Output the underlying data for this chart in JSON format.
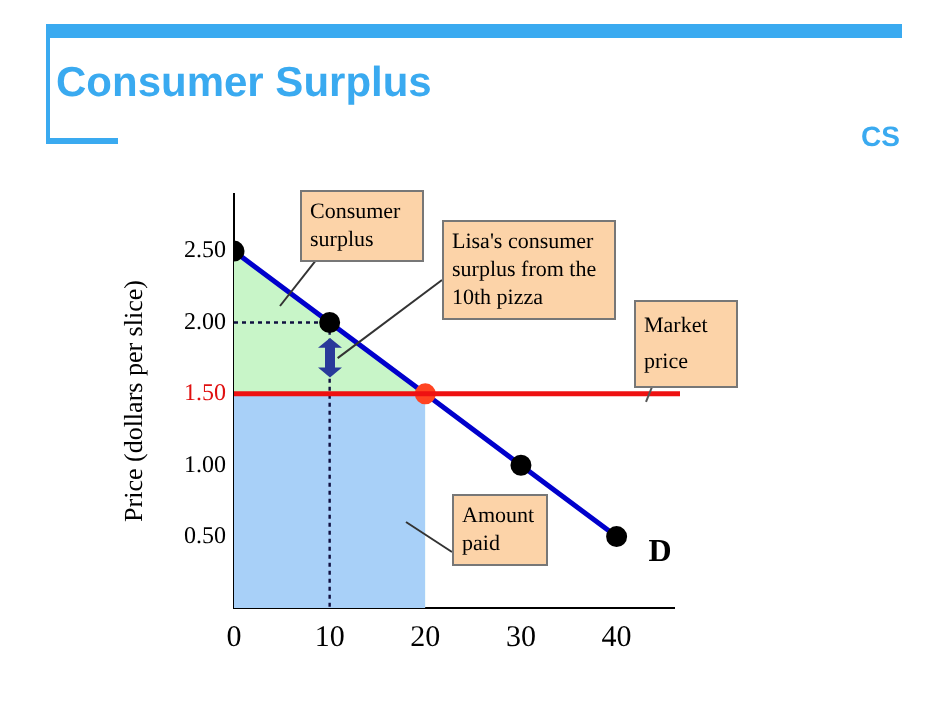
{
  "chart_data": {
    "type": "line",
    "title": "Consumer Surplus",
    "ylabel": "Price (dollars per slice)",
    "xlim": [
      0,
      46
    ],
    "xticks": [
      0,
      10,
      20,
      30,
      40
    ],
    "ylim": [
      0,
      2.9
    ],
    "yticks": [
      {
        "value": 0.5,
        "label": "0.50"
      },
      {
        "value": 1,
        "label": "1.00"
      },
      {
        "value": 1.5,
        "label": "1.50"
      },
      {
        "value": 2,
        "label": "2.00"
      },
      {
        "value": 2.5,
        "label": "2.50"
      }
    ],
    "series": [
      {
        "type": "area",
        "x": [
          0,
          20
        ],
        "values": [
          2.5,
          1.5
        ],
        "color": "#c8f5c8"
      },
      {
        "type": "area",
        "x": [
          0,
          20
        ],
        "values": [
          1.5,
          1.5
        ],
        "color": "#a8d0f8"
      },
      {
        "x": [
          0,
          10,
          10
        ],
        "values": [
          2,
          2,
          0
        ],
        "color": "#101040",
        "line_style": "dotted",
        "marker": "none"
      },
      {
        "name": "D",
        "x": [
          0,
          10,
          20,
          30,
          40
        ],
        "values": [
          2.5,
          2,
          1.5,
          1,
          0.5
        ],
        "color": "#0000cc",
        "colors": [
          "#000000",
          "#000000",
          "#ff4422",
          "#000000",
          "#000000"
        ],
        "marker": "circle",
        "line_style": "solid"
      }
    ],
    "ref_lines": [
      {
        "axis": "y",
        "value": 1.5,
        "label": "Market price",
        "color": "#ee1111"
      }
    ],
    "annotations": [
      "Consumer surplus",
      {
        "text": "Lisa's consumer surplus from the 10th  pizza",
        "x": 10,
        "y": 1.75
      },
      "Amount paid",
      "CS"
    ],
    "grid": false,
    "legend": false
  }
}
